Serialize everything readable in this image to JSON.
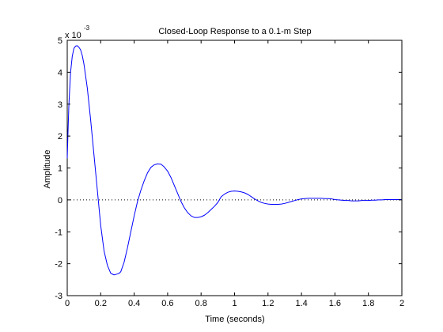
{
  "chart_data": {
    "type": "line",
    "title": "Closed-Loop Response to a 0.1-m Step",
    "xlabel": "Time (seconds)",
    "ylabel": "Amplitude",
    "y_multiplier_label": "x 10",
    "y_multiplier_exponent": "-3",
    "xlim": [
      0,
      2
    ],
    "ylim": [
      -3,
      5
    ],
    "xticks": [
      0,
      0.2,
      0.4,
      0.6,
      0.8,
      1,
      1.2,
      1.4,
      1.6,
      1.8,
      2
    ],
    "xtick_labels": [
      "0",
      "0.2",
      "0.4",
      "0.6",
      "0.8",
      "1",
      "1.2",
      "1.4",
      "1.6",
      "1.8",
      "2"
    ],
    "yticks": [
      -3,
      -2,
      -1,
      0,
      1,
      2,
      3,
      4,
      5
    ],
    "ytick_labels": [
      "-3",
      "-2",
      "-1",
      "0",
      "1",
      "2",
      "3",
      "4",
      "5"
    ],
    "grid": false,
    "reference_line": {
      "y": 0,
      "style": "dotted"
    },
    "series": [
      {
        "color": "#0000ff",
        "x": [
          0,
          0.005,
          0.01,
          0.02,
          0.03,
          0.04,
          0.05,
          0.06,
          0.07,
          0.08,
          0.09,
          0.1,
          0.12,
          0.14,
          0.16,
          0.18,
          0.2,
          0.22,
          0.24,
          0.26,
          0.28,
          0.3,
          0.31,
          0.32,
          0.33,
          0.34,
          0.36,
          0.38,
          0.4,
          0.42,
          0.44,
          0.46,
          0.48,
          0.5,
          0.52,
          0.54,
          0.56,
          0.58,
          0.6,
          0.62,
          0.64,
          0.66,
          0.68,
          0.7,
          0.72,
          0.74,
          0.76,
          0.78,
          0.8,
          0.82,
          0.84,
          0.86,
          0.88,
          0.9,
          0.92,
          0.94,
          0.96,
          0.98,
          1.0,
          1.02,
          1.04,
          1.06,
          1.08,
          1.1,
          1.12,
          1.14,
          1.16,
          1.18,
          1.2,
          1.22,
          1.24,
          1.26,
          1.28,
          1.3,
          1.32,
          1.34,
          1.36,
          1.38,
          1.4,
          1.42,
          1.44,
          1.46,
          1.48,
          1.5,
          1.52,
          1.54,
          1.56,
          1.58,
          1.6,
          1.62,
          1.64,
          1.66,
          1.68,
          1.7,
          1.72,
          1.74,
          1.76,
          1.78,
          1.8,
          1.82,
          1.84,
          1.86,
          1.88,
          1.9,
          1.92,
          1.94,
          1.96,
          1.98,
          2.0
        ],
        "y": [
          0.0013,
          0.0022,
          0.003,
          0.004,
          0.0045,
          0.00475,
          0.00482,
          0.00483,
          0.00478,
          0.0047,
          0.00452,
          0.00425,
          0.0035,
          0.0025,
          0.0014,
          0.0003,
          -0.0008,
          -0.0016,
          -0.00205,
          -0.0023,
          -0.00235,
          -0.00232,
          -0.0023,
          -0.00225,
          -0.0021,
          -0.00195,
          -0.0015,
          -0.001,
          -0.0005,
          -5e-05,
          0.0003,
          0.0006,
          0.00085,
          0.00102,
          0.0011,
          0.00113,
          0.00112,
          0.00103,
          0.0009,
          0.0007,
          0.00045,
          0.0002,
          -5e-05,
          -0.00025,
          -0.0004,
          -0.0005,
          -0.00055,
          -0.00055,
          -0.00053,
          -0.00048,
          -0.0004,
          -0.0003,
          -0.0002,
          -8e-05,
          0.0001,
          0.00018,
          0.00024,
          0.00027,
          0.00028,
          0.00027,
          0.00025,
          0.00022,
          0.00017,
          0.0001,
          3e-05,
          -3e-05,
          -8e-05,
          -0.00011,
          -0.00013,
          -0.00014,
          -0.00014,
          -0.00014,
          -0.00013,
          -0.00011,
          -8e-05,
          -5e-05,
          -2e-05,
          1e-05,
          3e-05,
          4e-05,
          5e-05,
          5e-05,
          5e-05,
          5e-05,
          5e-05,
          4e-05,
          4e-05,
          3e-05,
          1e-05,
          0.0,
          -1e-05,
          -2e-05,
          -2e-05,
          -3e-05,
          -3e-05,
          -3e-05,
          -2e-05,
          -2e-05,
          -2e-05,
          -1e-05,
          -1e-05,
          0.0,
          0.0,
          1e-05,
          1e-05,
          1e-05,
          1e-05,
          1e-05,
          1e-05
        ]
      }
    ]
  }
}
